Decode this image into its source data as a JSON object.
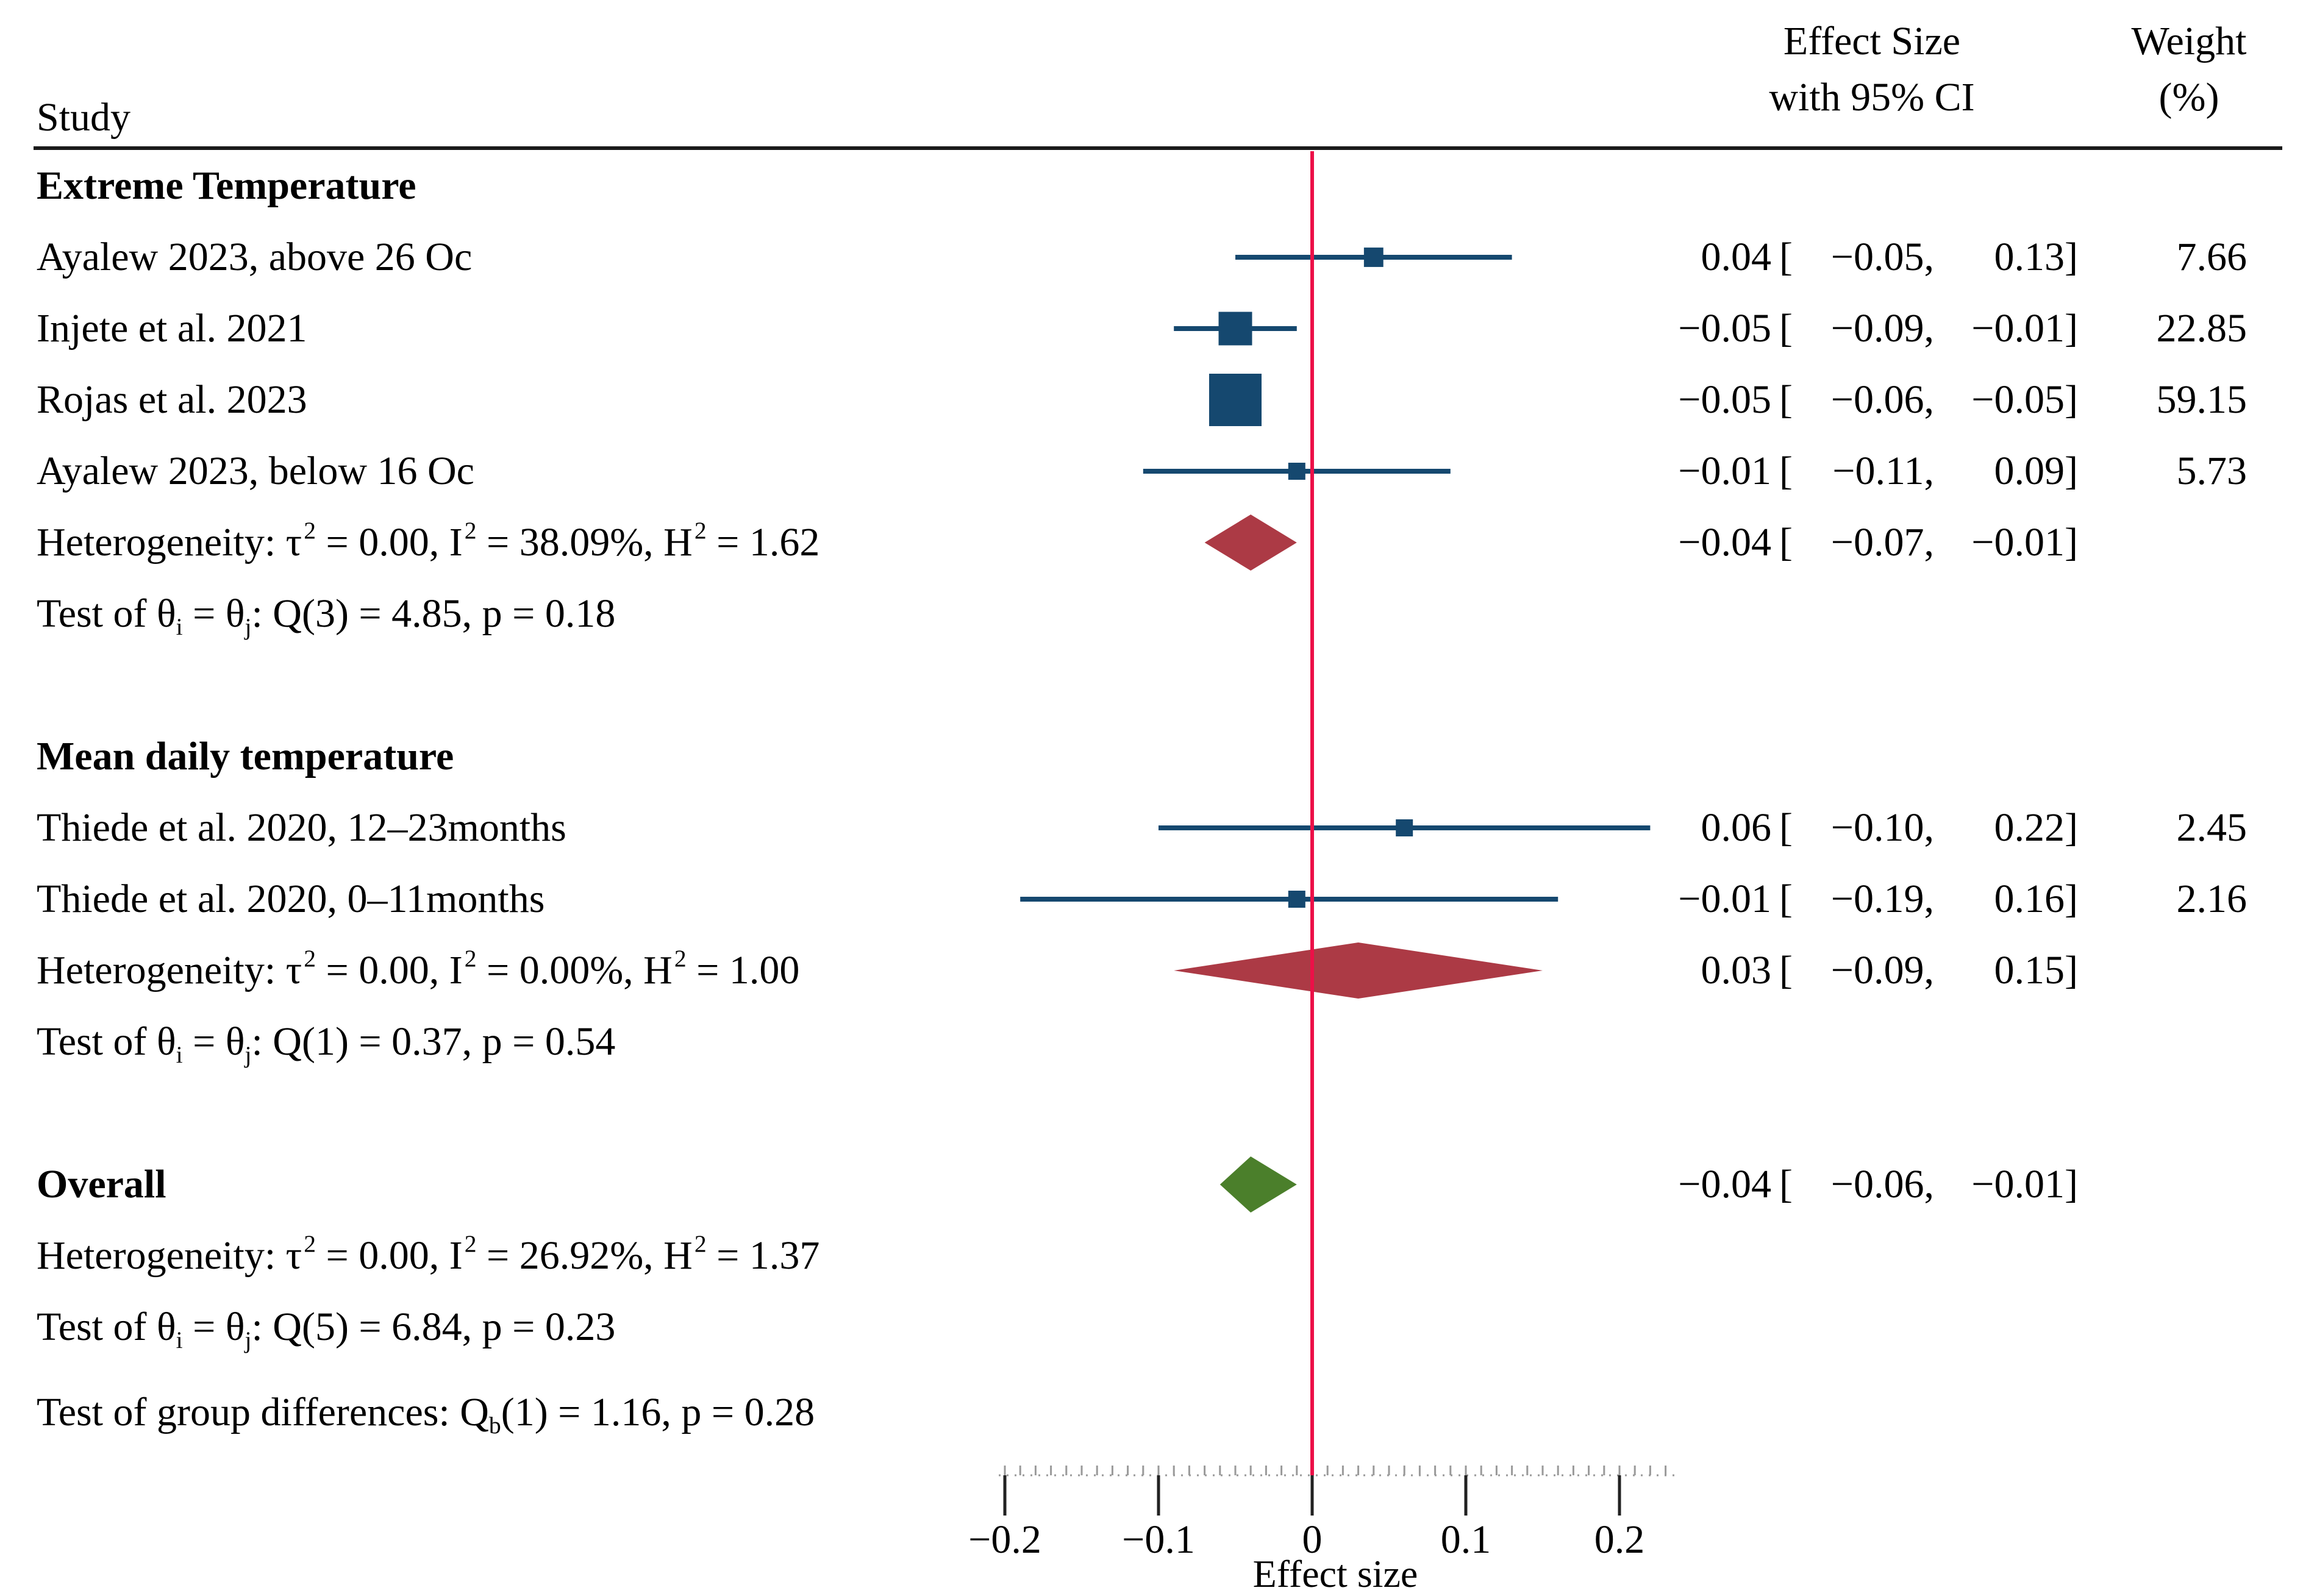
{
  "header": {
    "study_label": "Study",
    "effect_line1": "Effect Size",
    "effect_line2": "with 95% CI",
    "weight_line1": "Weight",
    "weight_line2": "(%)"
  },
  "punct": {
    "open_bracket": "["
  },
  "colors": {
    "marker_navy": "#15486F",
    "diamond_red": "#AC3A45",
    "diamond_green": "#4B7F2B",
    "zero_line_red": "#EC1048",
    "text": "#000000",
    "rule": "#1A1A1A",
    "axis_dots": "#9A9A9A",
    "axis_tick": "#222222"
  },
  "axis": {
    "label": "Effect size",
    "min": -0.2,
    "max": 0.235,
    "minor_step": 0.01,
    "ticks": [
      {
        "v": -0.2,
        "label": "−0.2"
      },
      {
        "v": -0.1,
        "label": "−0.1"
      },
      {
        "v": 0,
        "label": "0"
      },
      {
        "v": 0.1,
        "label": "0.1"
      },
      {
        "v": 0.2,
        "label": "0.2"
      }
    ]
  },
  "chart_data": {
    "type": "forest",
    "xlabel": "Effect size",
    "x_ticks": [
      -0.2,
      -0.1,
      0,
      0.1,
      0.2
    ],
    "x_range": [
      -0.2,
      0.235
    ],
    "zero_line": 0,
    "groups": [
      {
        "name": "Extreme Temperature",
        "studies": [
          {
            "label": "Ayalew 2023, above 26 Oc",
            "est": 0.04,
            "lo": -0.05,
            "hi": 0.13,
            "weight": 7.66,
            "est_text": "0.04",
            "lo_text": "−0.05,",
            "hi_text": "0.13]",
            "weight_text": "7.66"
          },
          {
            "label": "Injete et al. 2021",
            "est": -0.05,
            "lo": -0.09,
            "hi": -0.01,
            "weight": 22.85,
            "est_text": "−0.05",
            "lo_text": "−0.09,",
            "hi_text": "−0.01]",
            "weight_text": "22.85"
          },
          {
            "label": "Rojas et al. 2023",
            "est": -0.05,
            "lo": -0.06,
            "hi": -0.05,
            "weight": 59.15,
            "est_text": "−0.05",
            "lo_text": "−0.06,",
            "hi_text": "−0.05]",
            "weight_text": "59.15"
          },
          {
            "label": "Ayalew 2023, below 16 Oc",
            "est": -0.01,
            "lo": -0.11,
            "hi": 0.09,
            "weight": 5.73,
            "est_text": "−0.01",
            "lo_text": "−0.11,",
            "hi_text": "0.09]",
            "weight_text": "5.73"
          }
        ],
        "summary": {
          "est": -0.04,
          "lo": -0.07,
          "hi": -0.01,
          "est_text": "−0.04",
          "lo_text": "−0.07,",
          "hi_text": "−0.01]",
          "heterogeneity_parts": [
            {
              "t": "Heterogeneity: τ"
            },
            {
              "t": "2",
              "sup": true
            },
            {
              "t": " = 0.00, I"
            },
            {
              "t": "2",
              "sup": true
            },
            {
              "t": " = 38.09%, H"
            },
            {
              "t": "2",
              "sup": true
            },
            {
              "t": " = 1.62"
            }
          ],
          "test_parts": [
            {
              "t": "Test of θ"
            },
            {
              "t": "i",
              "sub": true
            },
            {
              "t": " = θ"
            },
            {
              "t": "j",
              "sub": true
            },
            {
              "t": ": Q(3) = 4.85, p = 0.18"
            }
          ]
        }
      },
      {
        "name": "Mean daily temperature",
        "studies": [
          {
            "label": "Thiede et al. 2020, 12–23months",
            "est": 0.06,
            "lo": -0.1,
            "hi": 0.22,
            "weight": 2.45,
            "est_text": "0.06",
            "lo_text": "−0.10,",
            "hi_text": "0.22]",
            "weight_text": "2.45"
          },
          {
            "label": "Thiede et al. 2020, 0–11months",
            "est": -0.01,
            "lo": -0.19,
            "hi": 0.16,
            "weight": 2.16,
            "est_text": "−0.01",
            "lo_text": "−0.19,",
            "hi_text": "0.16]",
            "weight_text": "2.16"
          }
        ],
        "summary": {
          "est": 0.03,
          "lo": -0.09,
          "hi": 0.15,
          "est_text": "0.03",
          "lo_text": "−0.09,",
          "hi_text": "0.15]",
          "heterogeneity_parts": [
            {
              "t": "Heterogeneity: τ"
            },
            {
              "t": "2",
              "sup": true
            },
            {
              "t": " = 0.00, I"
            },
            {
              "t": "2",
              "sup": true
            },
            {
              "t": " = 0.00%, H"
            },
            {
              "t": "2",
              "sup": true
            },
            {
              "t": " = 1.00"
            }
          ],
          "test_parts": [
            {
              "t": "Test of θ"
            },
            {
              "t": "i",
              "sub": true
            },
            {
              "t": " = θ"
            },
            {
              "t": "j",
              "sub": true
            },
            {
              "t": ": Q(1) = 0.37, p = 0.54"
            }
          ]
        }
      }
    ],
    "overall": {
      "label": "Overall",
      "est": -0.04,
      "lo": -0.06,
      "hi": -0.01,
      "est_text": "−0.04",
      "lo_text": "−0.06,",
      "hi_text": "−0.01]",
      "heterogeneity_parts": [
        {
          "t": "Heterogeneity: τ"
        },
        {
          "t": "2",
          "sup": true
        },
        {
          "t": " = 0.00, I"
        },
        {
          "t": "2",
          "sup": true
        },
        {
          "t": " = 26.92%, H"
        },
        {
          "t": "2",
          "sup": true
        },
        {
          "t": " = 1.37"
        }
      ],
      "test_parts": [
        {
          "t": "Test of θ"
        },
        {
          "t": "i",
          "sub": true
        },
        {
          "t": " = θ"
        },
        {
          "t": "j",
          "sub": true
        },
        {
          "t": ": Q(5) = 6.84, p = 0.23"
        }
      ]
    },
    "group_difference_parts": [
      {
        "t": "Test of group differences: Q"
      },
      {
        "t": "b",
        "sub": true
      },
      {
        "t": "(1) = 1.16, p = 0.28"
      }
    ]
  }
}
